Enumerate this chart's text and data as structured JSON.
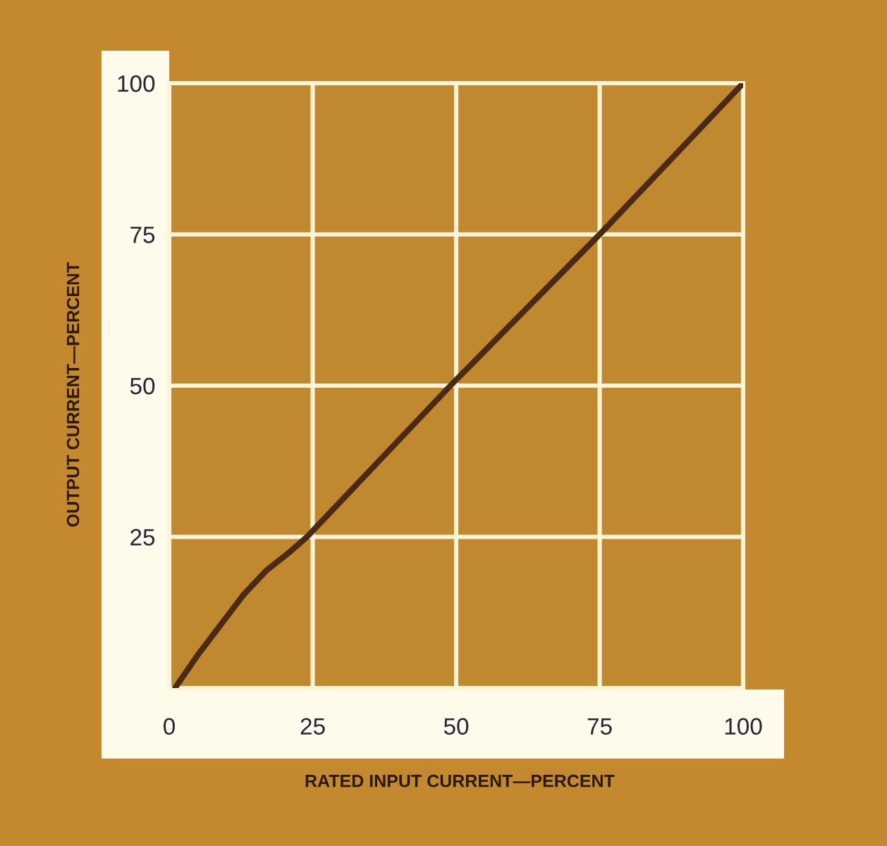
{
  "chart_data": {
    "type": "line",
    "xlabel": "RATED INPUT CURRENT—PERCENT",
    "ylabel": "OUTPUT CURRENT—PERCENT",
    "series": [
      {
        "color": "#4a2a12",
        "x": [
          1,
          5,
          9,
          13,
          17,
          21,
          24,
          49,
          75,
          100
        ],
        "values": [
          0,
          5.5,
          10.5,
          15.5,
          19.5,
          22.5,
          25,
          50,
          75,
          100
        ]
      }
    ],
    "xlim": [
      0,
      100
    ],
    "ylim": [
      0,
      100
    ],
    "xticks": [
      0,
      25,
      50,
      75,
      100
    ],
    "yticks": [
      25,
      50,
      75,
      100
    ],
    "grid": true
  }
}
